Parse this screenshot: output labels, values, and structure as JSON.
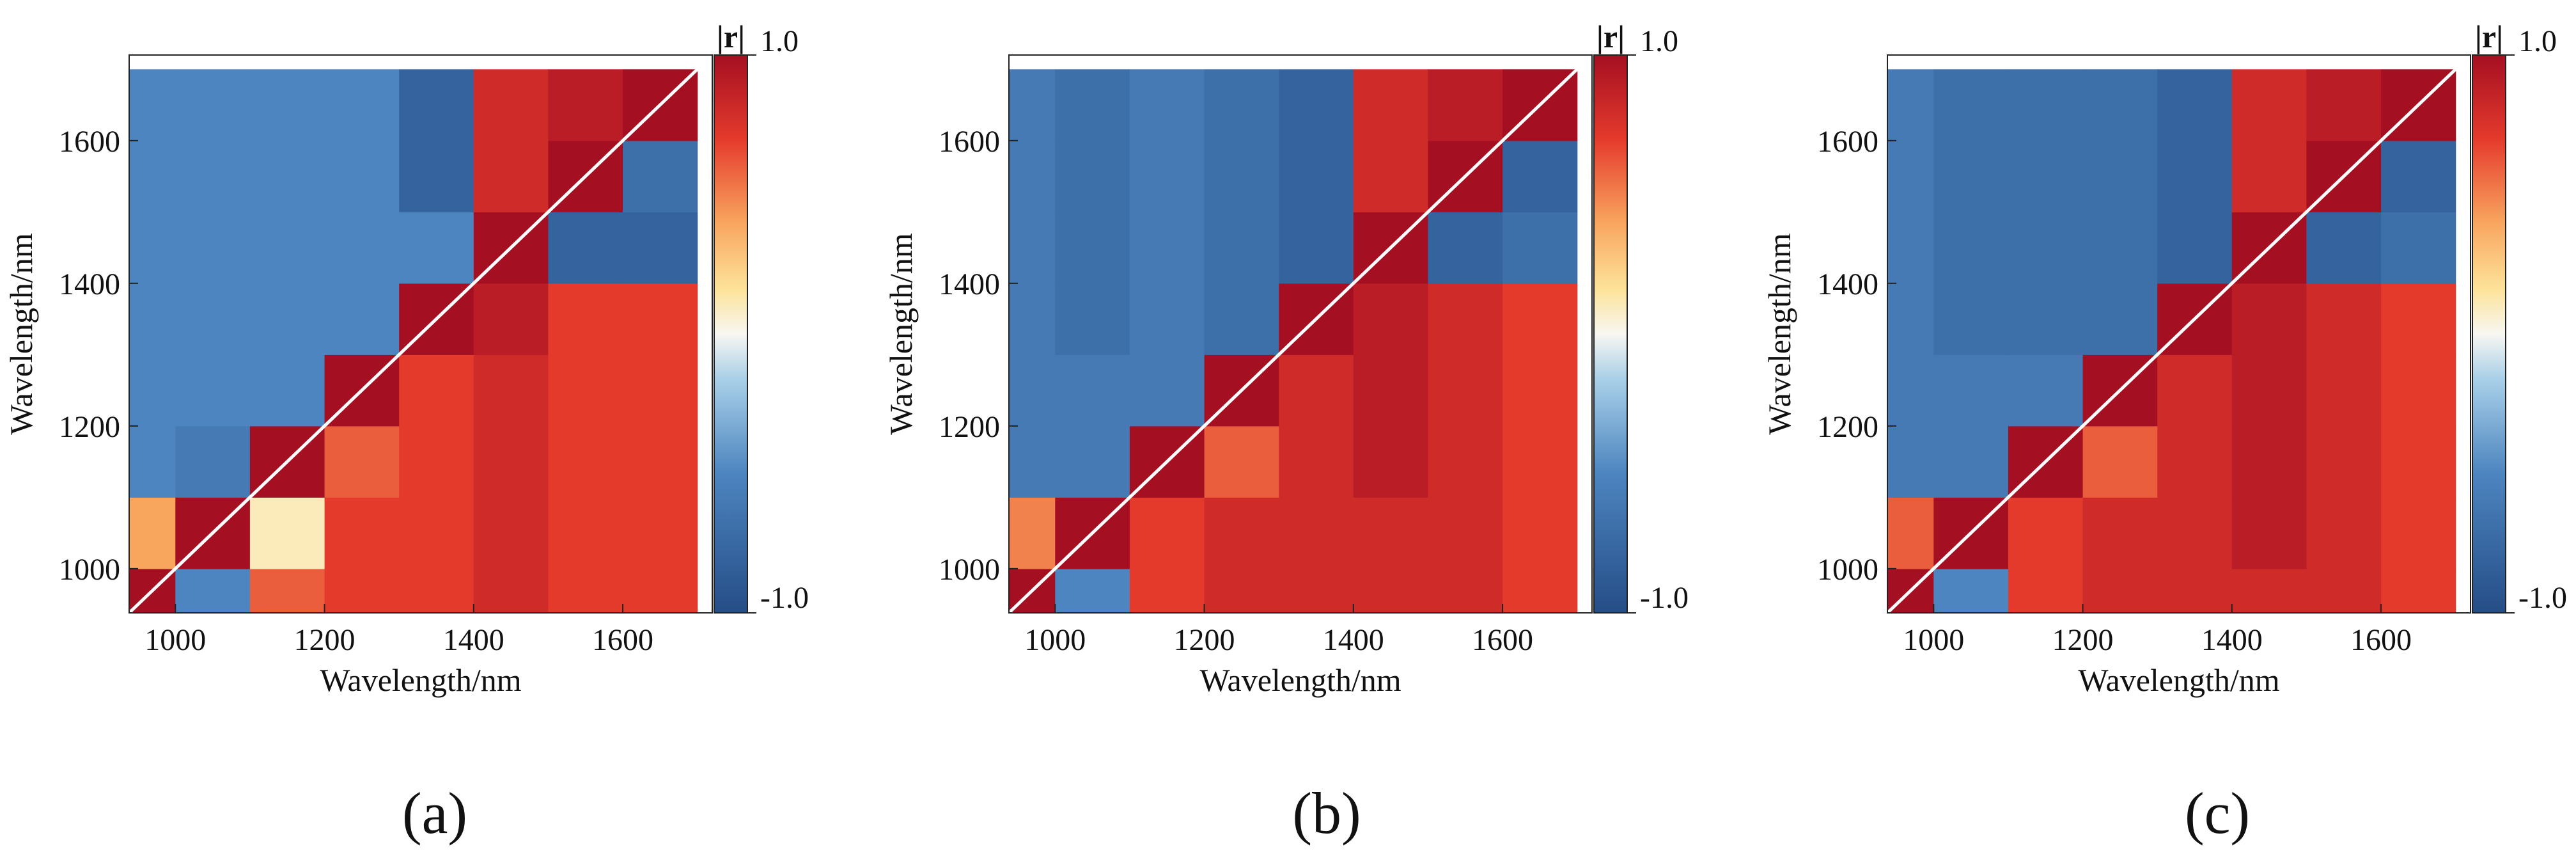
{
  "figure": {
    "panels": [
      {
        "id": "a",
        "caption": "(a)",
        "xlabel": "Wavelength/nm",
        "ylabel": "Wavelength/nm"
      },
      {
        "id": "b",
        "caption": "(b)",
        "xlabel": "Wavelength/nm",
        "ylabel": "Wavelength/nm"
      },
      {
        "id": "c",
        "caption": "(c)",
        "xlabel": "Wavelength/nm",
        "ylabel": "Wavelength/nm"
      }
    ],
    "colorbar": {
      "title": "|r|",
      "max_label": "1.0",
      "min_label": "-1.0"
    }
  },
  "chart_data": [
    {
      "type": "heatmap",
      "panel": "(a)",
      "xlabel": "Wavelength/nm",
      "ylabel": "Wavelength/nm",
      "xlim": [
        938,
        1720
      ],
      "ylim": [
        938,
        1720
      ],
      "xticks": [
        1000,
        1200,
        1400,
        1600
      ],
      "yticks": [
        1000,
        1200,
        1400,
        1600
      ],
      "colorbar": {
        "title": "|r|",
        "range": [
          -1.0,
          1.0
        ],
        "ticks": [
          "1.0",
          "-1.0"
        ]
      },
      "x": [
        950,
        1050,
        1150,
        1250,
        1350,
        1450,
        1550,
        1650
      ],
      "y": [
        950,
        1050,
        1150,
        1250,
        1350,
        1450,
        1550,
        1650
      ],
      "z": [
        [
          1.0,
          -0.5,
          0.6,
          0.7,
          0.7,
          0.8,
          0.7,
          0.7
        ],
        [
          0.4,
          1.0,
          0.1,
          0.7,
          0.7,
          0.8,
          0.7,
          0.7
        ],
        [
          -0.5,
          -0.6,
          1.0,
          0.6,
          0.7,
          0.8,
          0.7,
          0.7
        ],
        [
          -0.5,
          -0.5,
          -0.5,
          1.0,
          0.7,
          0.8,
          0.7,
          0.7
        ],
        [
          -0.5,
          -0.5,
          -0.5,
          -0.5,
          1.0,
          0.9,
          0.7,
          0.7
        ],
        [
          -0.5,
          -0.5,
          -0.5,
          -0.5,
          -0.5,
          1.0,
          -0.8,
          -0.8
        ],
        [
          -0.5,
          -0.5,
          -0.5,
          -0.5,
          -0.8,
          0.8,
          1.0,
          -0.7
        ],
        [
          -0.5,
          -0.5,
          -0.5,
          -0.5,
          -0.8,
          0.8,
          0.9,
          1.0
        ]
      ]
    },
    {
      "type": "heatmap",
      "panel": "(b)",
      "xlabel": "Wavelength/nm",
      "ylabel": "Wavelength/nm",
      "xlim": [
        938,
        1720
      ],
      "ylim": [
        938,
        1720
      ],
      "xticks": [
        1000,
        1200,
        1400,
        1600
      ],
      "yticks": [
        1000,
        1200,
        1400,
        1600
      ],
      "colorbar": {
        "title": "|r|",
        "range": [
          -1.0,
          1.0
        ],
        "ticks": [
          "1.0",
          "-1.0"
        ]
      },
      "x": [
        950,
        1050,
        1150,
        1250,
        1350,
        1450,
        1550,
        1650
      ],
      "y": [
        950,
        1050,
        1150,
        1250,
        1350,
        1450,
        1550,
        1650
      ],
      "z": [
        [
          1.0,
          -0.5,
          0.7,
          0.8,
          0.8,
          0.8,
          0.8,
          0.7
        ],
        [
          0.5,
          1.0,
          0.7,
          0.8,
          0.8,
          0.8,
          0.8,
          0.7
        ],
        [
          -0.6,
          -0.6,
          1.0,
          0.6,
          0.8,
          0.9,
          0.8,
          0.7
        ],
        [
          -0.6,
          -0.6,
          -0.6,
          1.0,
          0.8,
          0.9,
          0.8,
          0.7
        ],
        [
          -0.6,
          -0.7,
          -0.6,
          -0.7,
          1.0,
          0.9,
          0.8,
          0.7
        ],
        [
          -0.6,
          -0.7,
          -0.6,
          -0.7,
          -0.8,
          1.0,
          -0.8,
          -0.7
        ],
        [
          -0.6,
          -0.7,
          -0.6,
          -0.7,
          -0.8,
          0.8,
          1.0,
          -0.8
        ],
        [
          -0.6,
          -0.7,
          -0.6,
          -0.7,
          -0.8,
          0.8,
          0.9,
          1.0
        ]
      ]
    },
    {
      "type": "heatmap",
      "panel": "(c)",
      "xlabel": "Wavelength/nm",
      "ylabel": "Wavelength/nm",
      "xlim": [
        938,
        1720
      ],
      "ylim": [
        938,
        1720
      ],
      "xticks": [
        1000,
        1200,
        1400,
        1600
      ],
      "yticks": [
        1000,
        1200,
        1400,
        1600
      ],
      "colorbar": {
        "title": "|r|",
        "range": [
          -1.0,
          1.0
        ],
        "ticks": [
          "1.0",
          "-1.0"
        ]
      },
      "x": [
        950,
        1050,
        1150,
        1250,
        1350,
        1450,
        1550,
        1650
      ],
      "y": [
        950,
        1050,
        1150,
        1250,
        1350,
        1450,
        1550,
        1650
      ],
      "z": [
        [
          1.0,
          -0.5,
          0.7,
          0.8,
          0.8,
          0.8,
          0.8,
          0.7
        ],
        [
          0.6,
          1.0,
          0.7,
          0.8,
          0.8,
          0.9,
          0.8,
          0.7
        ],
        [
          -0.6,
          -0.6,
          1.0,
          0.6,
          0.8,
          0.9,
          0.8,
          0.7
        ],
        [
          -0.6,
          -0.6,
          -0.6,
          1.0,
          0.8,
          0.9,
          0.8,
          0.7
        ],
        [
          -0.6,
          -0.7,
          -0.7,
          -0.7,
          1.0,
          0.9,
          0.8,
          0.7
        ],
        [
          -0.6,
          -0.7,
          -0.7,
          -0.7,
          -0.8,
          1.0,
          -0.8,
          -0.7
        ],
        [
          -0.6,
          -0.7,
          -0.7,
          -0.7,
          -0.8,
          0.8,
          1.0,
          -0.8
        ],
        [
          -0.6,
          -0.7,
          -0.7,
          -0.7,
          -0.8,
          0.8,
          0.9,
          1.0
        ]
      ]
    }
  ]
}
